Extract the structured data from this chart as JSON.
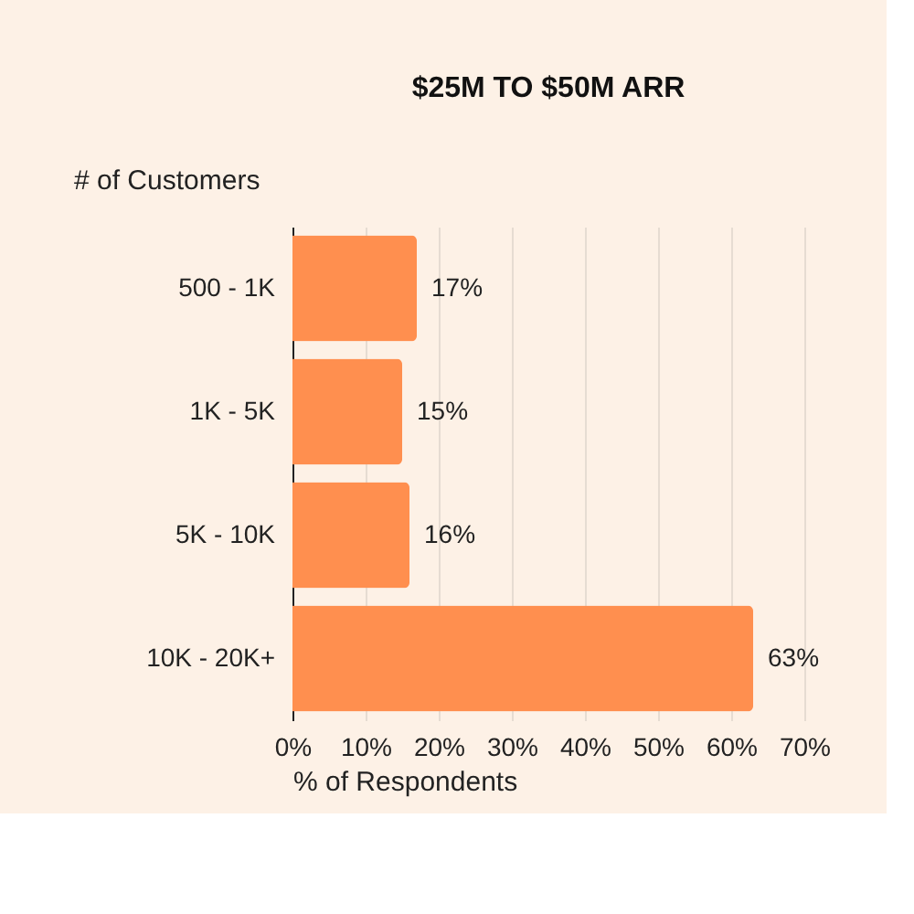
{
  "chart_data": {
    "type": "bar",
    "orientation": "horizontal",
    "title": "$25M TO $50M ARR",
    "xlabel": "% of Respondents",
    "ylabel": "# of Customers",
    "categories": [
      "500 - 1K",
      "1K - 5K",
      "5K - 10K",
      "10K - 20K+"
    ],
    "values": [
      17,
      15,
      16,
      63
    ],
    "value_labels": [
      "17%",
      "15%",
      "16%",
      "63%"
    ],
    "color": "#ff8f4f",
    "xlim": [
      0,
      70
    ],
    "xticks": [
      {
        "value": 0,
        "label": "0%"
      },
      {
        "value": 10,
        "label": "10%"
      },
      {
        "value": 20,
        "label": "20%"
      },
      {
        "value": 30,
        "label": "30%"
      },
      {
        "value": 40,
        "label": "40%"
      },
      {
        "value": 50,
        "label": "50%"
      },
      {
        "value": 60,
        "label": "60%"
      },
      {
        "value": 70,
        "label": "70%"
      }
    ],
    "grid": "x"
  }
}
